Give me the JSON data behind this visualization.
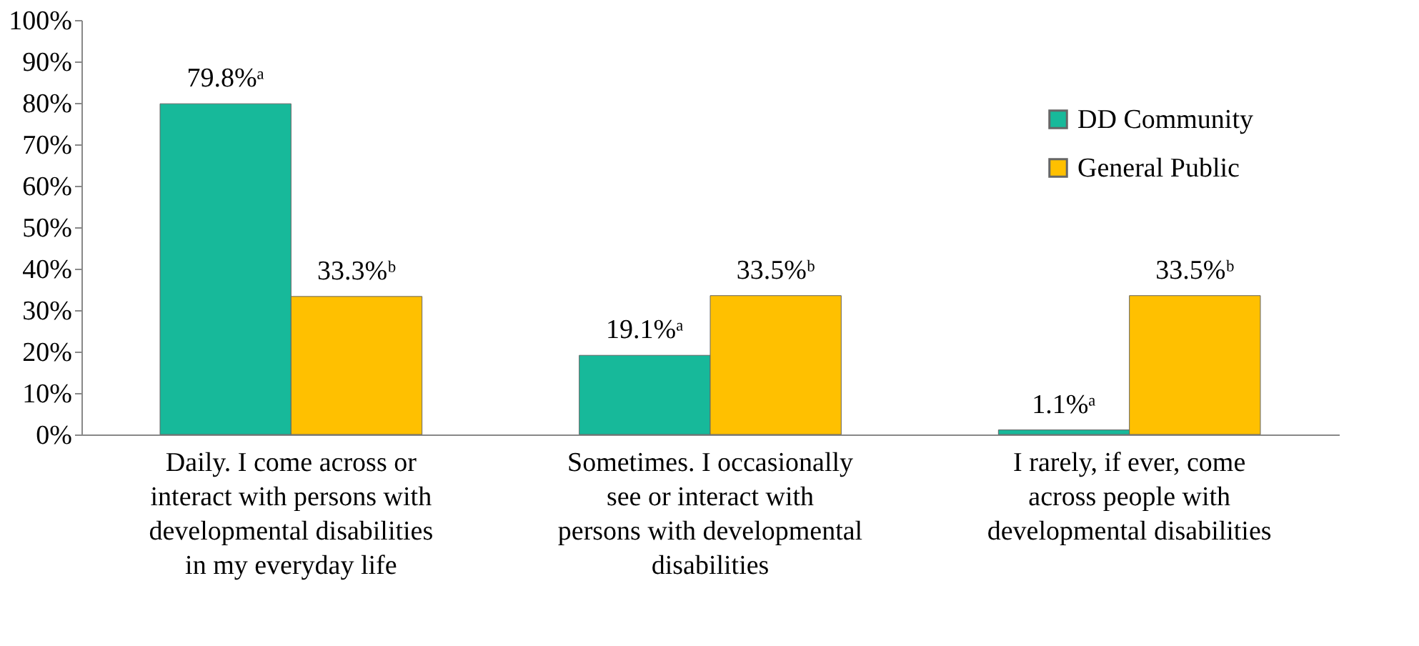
{
  "chart_data": {
    "type": "bar",
    "categories": [
      "Daily.  I come across or interact with persons with developmental disabilities in my everyday life",
      "Sometimes.  I occasionally see or interact with persons with developmental disabilities",
      "I rarely, if ever, come across people with developmental disabilities"
    ],
    "series": [
      {
        "name": "DD Community",
        "color": "#17b99a",
        "values": [
          79.8,
          19.1,
          1.1
        ],
        "value_labels": [
          "79.8%ᵃ",
          "19.1%ᵃ",
          "1.1%ᵃ"
        ]
      },
      {
        "name": "General Public",
        "color": "#ffc000",
        "values": [
          33.3,
          33.5,
          33.5
        ],
        "value_labels": [
          "33.3%ᵇ",
          "33.5%ᵇ",
          "33.5%ᵇ"
        ]
      }
    ],
    "ylim": [
      0,
      100
    ],
    "yticks": [
      {
        "value": 0,
        "label": "0%"
      },
      {
        "value": 10,
        "label": "10%"
      },
      {
        "value": 20,
        "label": "20%"
      },
      {
        "value": 30,
        "label": "30%"
      },
      {
        "value": 40,
        "label": "40%"
      },
      {
        "value": 50,
        "label": "50%"
      },
      {
        "value": 60,
        "label": "60%"
      },
      {
        "value": 70,
        "label": "70%"
      },
      {
        "value": 80,
        "label": "80%"
      },
      {
        "value": 90,
        "label": "90%"
      },
      {
        "value": 100,
        "label": "100%"
      }
    ],
    "legend": "top right",
    "grid": false
  }
}
